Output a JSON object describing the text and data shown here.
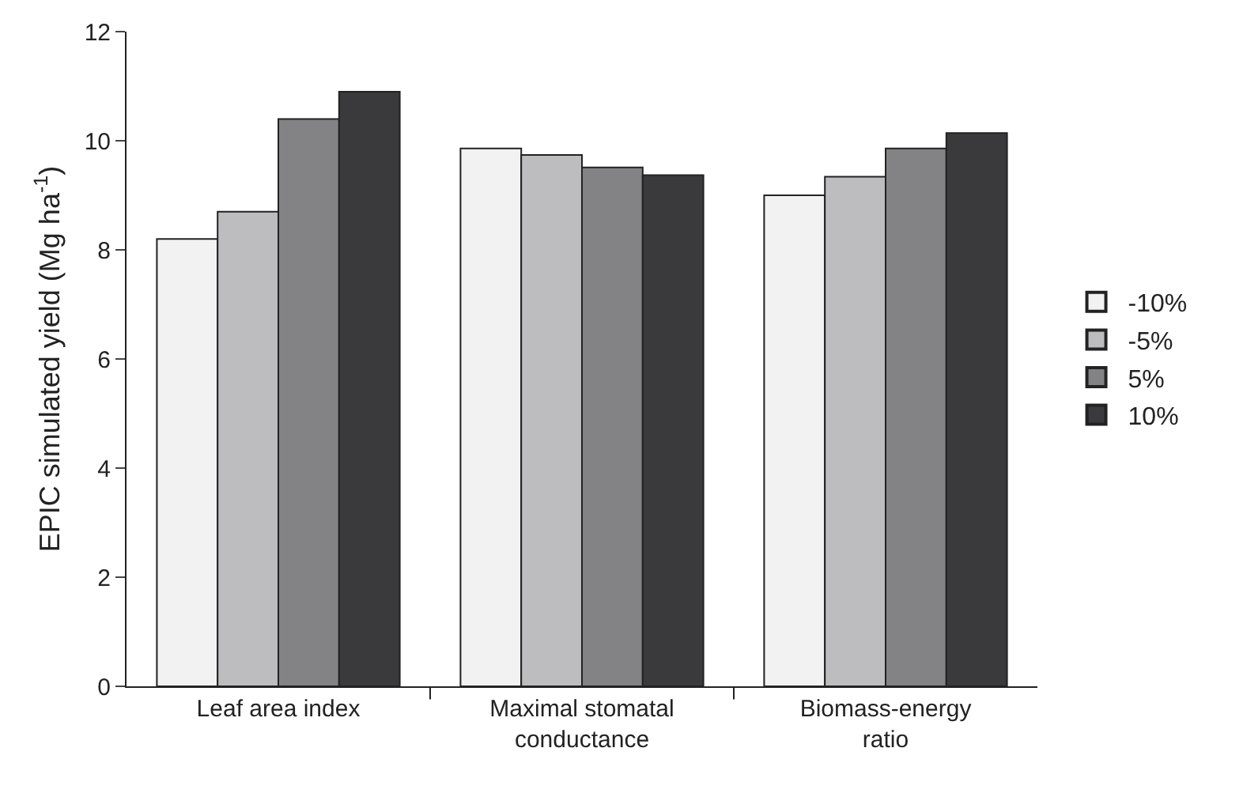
{
  "chart_data": {
    "type": "bar",
    "ylabel": "EPIC simulated yield (Mg ha$^{-1}$)",
    "categories": [
      "Leaf area index",
      "Maximal stomatal conductance",
      "Biomass-energy ratio"
    ],
    "series": [
      {
        "name": "-10%",
        "color": "#f2f2f2",
        "values": [
          8.2,
          9.86,
          9.0
        ]
      },
      {
        "name": "-5%",
        "color": "#bdbdc0",
        "values": [
          8.7,
          9.74,
          9.34
        ]
      },
      {
        "name": "5%",
        "color": "#838386",
        "values": [
          10.4,
          9.51,
          9.86
        ]
      },
      {
        "name": "10%",
        "color": "#3a3a3c",
        "values": [
          10.9,
          9.37,
          10.14
        ]
      }
    ],
    "ylim": [
      0,
      12
    ],
    "yticks": [
      0,
      2,
      4,
      6,
      8,
      10,
      12
    ],
    "legend": "right"
  }
}
